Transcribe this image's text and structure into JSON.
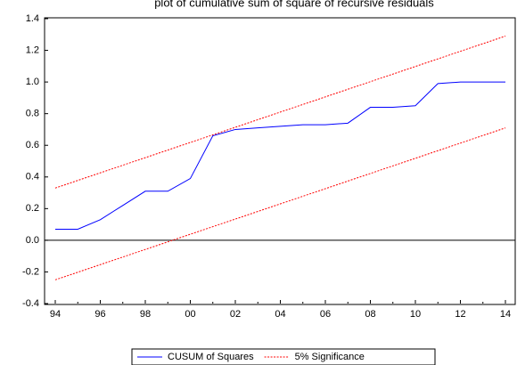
{
  "chart_data": {
    "type": "line",
    "title": "plot of cumulative sum of square of recursive residuals",
    "categories": [
      "94",
      null,
      "96",
      null,
      "98",
      null,
      "00",
      null,
      "02",
      null,
      "04",
      null,
      "06",
      null,
      "08",
      null,
      "10",
      null,
      "12",
      null,
      "14"
    ],
    "series": [
      {
        "name": "CUSUM of Squares",
        "color": "#0000ff",
        "dashed": false,
        "values": [
          0.07,
          0.07,
          0.13,
          0.22,
          0.31,
          0.31,
          0.39,
          0.66,
          0.7,
          0.71,
          0.72,
          0.73,
          0.73,
          0.74,
          0.84,
          0.84,
          0.85,
          0.99,
          1.0,
          1.0,
          1.0
        ]
      },
      {
        "name": "5% Significance",
        "color": "#ff0000",
        "dashed": true,
        "values": [
          0.33,
          0.378,
          0.426,
          0.474,
          0.522,
          0.57,
          0.618,
          0.666,
          0.714,
          0.762,
          0.81,
          0.858,
          0.906,
          0.954,
          1.002,
          1.05,
          1.098,
          1.146,
          1.194,
          1.242,
          1.29
        ],
        "lower": [
          -0.25,
          -0.202,
          -0.154,
          -0.106,
          -0.058,
          -0.01,
          0.038,
          0.086,
          0.134,
          0.182,
          0.23,
          0.278,
          0.326,
          0.374,
          0.422,
          0.47,
          0.518,
          0.566,
          0.614,
          0.662,
          0.71
        ]
      }
    ],
    "ylim": [
      -0.4,
      1.4
    ],
    "yticks": [
      -0.4,
      -0.2,
      {
        "value": 0,
        "label": "0.0"
      },
      0.2,
      0.4,
      0.6,
      0.8,
      {
        "value": 1,
        "label": "1.0"
      },
      1.2,
      1.4
    ],
    "zero_line": true,
    "legend": "bottom"
  }
}
